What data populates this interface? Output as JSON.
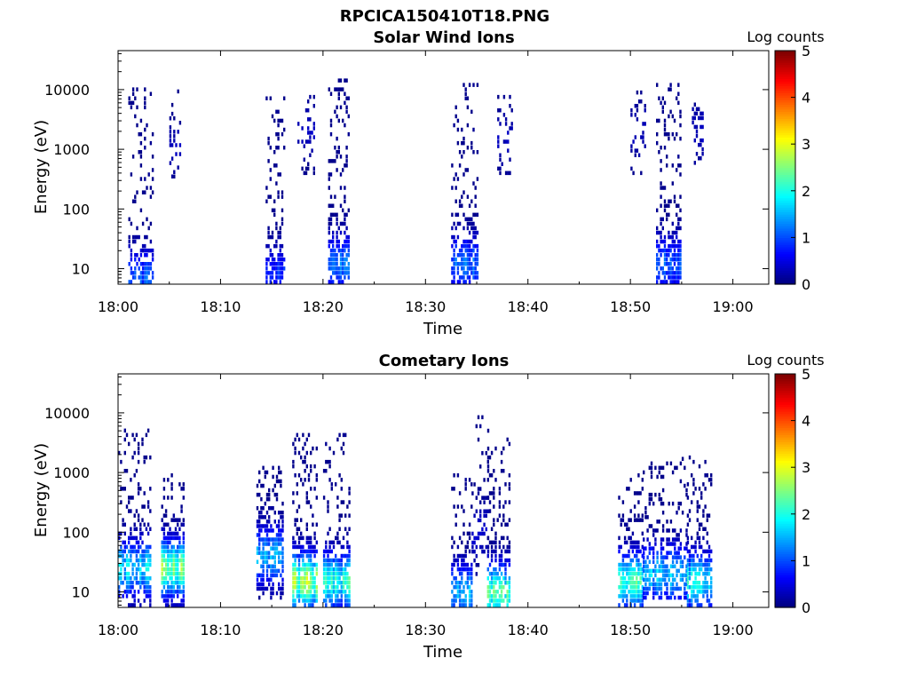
{
  "figure_title": "RPCICA150410T18.PNG",
  "chart_data": [
    {
      "type": "heatmap",
      "title": "Solar Wind Ions",
      "xlabel": "Time",
      "ylabel": "Energy (eV)",
      "x_ticks": [
        "18:00",
        "18:10",
        "18:20",
        "18:30",
        "18:40",
        "18:50",
        "19:00"
      ],
      "x_tick_minutes": [
        0,
        10,
        20,
        30,
        40,
        50,
        60
      ],
      "xlim_minutes": [
        0,
        63.5
      ],
      "y_ticks": [
        "10",
        "100",
        "1000",
        "10000"
      ],
      "y_tick_values": [
        10,
        100,
        1000,
        10000
      ],
      "ylim": [
        5.5,
        45000
      ],
      "y_scale": "log",
      "colorbar": {
        "label": "Log counts",
        "ticks": [
          "0",
          "1",
          "2",
          "3",
          "4",
          "5"
        ],
        "range": [
          0,
          5
        ],
        "colormap": "jet"
      },
      "bursts": [
        {
          "start": 1.0,
          "end": 3.4,
          "e_min": 6,
          "e_max": 15000,
          "peak_energy": 7,
          "peak_count": 1.2,
          "density": 0.35
        },
        {
          "start": 5.0,
          "end": 6.2,
          "e_min": 350,
          "e_max": 11000,
          "peak_energy": 1000,
          "peak_count": 0.3,
          "density": 0.12
        },
        {
          "start": 14.4,
          "end": 16.3,
          "e_min": 6,
          "e_max": 8000,
          "peak_energy": 8,
          "peak_count": 1.0,
          "density": 0.4
        },
        {
          "start": 17.5,
          "end": 19.2,
          "e_min": 400,
          "e_max": 9000,
          "peak_energy": 2000,
          "peak_count": 0.3,
          "density": 0.15
        },
        {
          "start": 20.5,
          "end": 22.6,
          "e_min": 6,
          "e_max": 18000,
          "peak_energy": 12,
          "peak_count": 1.4,
          "density": 0.45
        },
        {
          "start": 32.5,
          "end": 35.2,
          "e_min": 6,
          "e_max": 14000,
          "peak_energy": 12,
          "peak_count": 1.3,
          "density": 0.4
        },
        {
          "start": 37.0,
          "end": 38.6,
          "e_min": 400,
          "e_max": 10000,
          "peak_energy": 1500,
          "peak_count": 0.3,
          "density": 0.15
        },
        {
          "start": 50.0,
          "end": 51.5,
          "e_min": 400,
          "e_max": 10000,
          "peak_energy": 2000,
          "peak_count": 0.3,
          "density": 0.15
        },
        {
          "start": 52.5,
          "end": 55.0,
          "e_min": 6,
          "e_max": 14000,
          "peak_energy": 12,
          "peak_count": 1.2,
          "density": 0.42
        },
        {
          "start": 56.0,
          "end": 57.2,
          "e_min": 500,
          "e_max": 7000,
          "peak_energy": 2000,
          "peak_count": 0.3,
          "density": 0.18
        }
      ]
    },
    {
      "type": "heatmap",
      "title": "Cometary Ions",
      "xlabel": "Time",
      "ylabel": "Energy (eV)",
      "x_ticks": [
        "18:00",
        "18:10",
        "18:20",
        "18:30",
        "18:40",
        "18:50",
        "19:00"
      ],
      "x_tick_minutes": [
        0,
        10,
        20,
        30,
        40,
        50,
        60
      ],
      "xlim_minutes": [
        0,
        63.5
      ],
      "y_ticks": [
        "10",
        "100",
        "1000",
        "10000"
      ],
      "y_tick_values": [
        10,
        100,
        1000,
        10000
      ],
      "ylim": [
        5.5,
        45000
      ],
      "y_scale": "log",
      "colorbar": {
        "label": "Log counts",
        "ticks": [
          "0",
          "1",
          "2",
          "3",
          "4",
          "5"
        ],
        "range": [
          0,
          5
        ],
        "colormap": "jet"
      },
      "bursts": [
        {
          "start": 0.0,
          "end": 3.3,
          "e_min": 6,
          "e_max": 6000,
          "peak_energy": 25,
          "peak_count": 2.0,
          "density": 0.4
        },
        {
          "start": 4.2,
          "end": 6.5,
          "e_min": 6,
          "e_max": 1000,
          "peak_energy": 25,
          "peak_count": 3.0,
          "density": 0.55
        },
        {
          "start": 13.5,
          "end": 16.2,
          "e_min": 8,
          "e_max": 1500,
          "peak_energy": 40,
          "peak_count": 1.8,
          "density": 0.4
        },
        {
          "start": 17.0,
          "end": 19.5,
          "e_min": 6,
          "e_max": 5000,
          "peak_energy": 15,
          "peak_count": 3.1,
          "density": 0.5
        },
        {
          "start": 20.0,
          "end": 22.6,
          "e_min": 6,
          "e_max": 5000,
          "peak_energy": 15,
          "peak_count": 2.4,
          "density": 0.5
        },
        {
          "start": 32.5,
          "end": 34.5,
          "e_min": 6,
          "e_max": 1000,
          "peak_energy": 10,
          "peak_count": 1.8,
          "density": 0.4
        },
        {
          "start": 34.5,
          "end": 36.3,
          "e_min": 20,
          "e_max": 10000,
          "peak_energy": 100,
          "peak_count": 0.4,
          "density": 0.2
        },
        {
          "start": 36.0,
          "end": 38.3,
          "e_min": 6,
          "e_max": 4000,
          "peak_energy": 10,
          "peak_count": 2.6,
          "density": 0.45
        },
        {
          "start": 48.8,
          "end": 51.2,
          "e_min": 6,
          "e_max": 1000,
          "peak_energy": 15,
          "peak_count": 2.8,
          "density": 0.45
        },
        {
          "start": 51.2,
          "end": 55.5,
          "e_min": 8,
          "e_max": 2000,
          "peak_energy": 20,
          "peak_count": 1.9,
          "density": 0.4
        },
        {
          "start": 55.5,
          "end": 58.0,
          "e_min": 6,
          "e_max": 2000,
          "peak_energy": 15,
          "peak_count": 2.2,
          "density": 0.45
        }
      ]
    }
  ]
}
